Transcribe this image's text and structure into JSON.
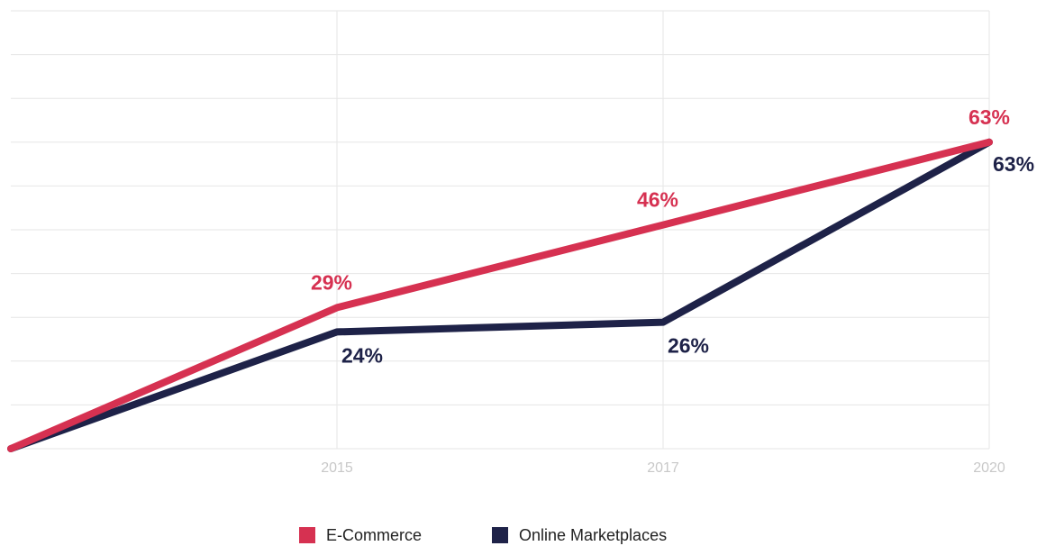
{
  "chart_data": {
    "type": "line",
    "categories": [
      null,
      "2015",
      "2017",
      "2020"
    ],
    "series": [
      {
        "name": "E-Commerce",
        "color": "#d63151",
        "values": [
          0,
          29,
          46,
          63
        ],
        "value_labels": [
          null,
          "29%",
          "46%",
          "63%"
        ]
      },
      {
        "name": "Online Marketplaces",
        "color": "#1e2248",
        "values": [
          0,
          24,
          26,
          63
        ],
        "value_labels": [
          null,
          "24%",
          "26%",
          "63%"
        ]
      }
    ],
    "ylim": [
      0,
      90
    ],
    "yticks": [
      0,
      9,
      18,
      27,
      36,
      45,
      54,
      63,
      72,
      81,
      90
    ],
    "grid": true,
    "legend": "bottom"
  }
}
